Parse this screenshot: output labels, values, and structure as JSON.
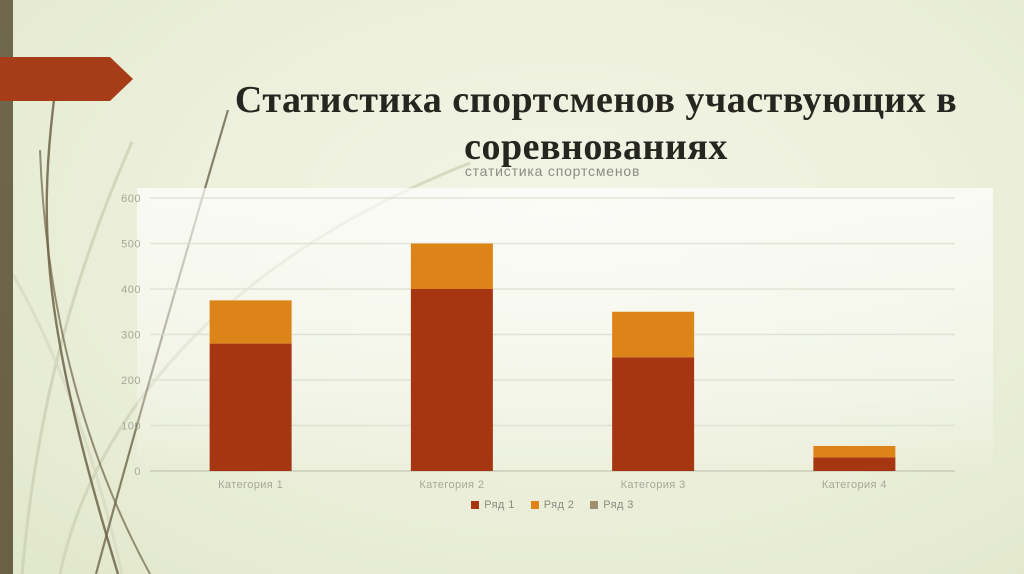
{
  "slide": {
    "title": "Статистика спортсменов участвующих в соревнованиях"
  },
  "chart_data": {
    "type": "bar",
    "stacked": true,
    "title": "статистика спортсменов",
    "categories": [
      "Категория 1",
      "Категория 2",
      "Категория 3",
      "Категория 4"
    ],
    "series": [
      {
        "name": "Ряд 1",
        "color": "#a63512",
        "values": [
          280,
          400,
          250,
          30
        ]
      },
      {
        "name": "Ряд 2",
        "color": "#dd8419",
        "values": [
          95,
          100,
          100,
          25
        ]
      },
      {
        "name": "Ряд 3",
        "color": "#9c9071",
        "values": [
          0,
          0,
          0,
          0
        ]
      }
    ],
    "stack_totals": [
      375,
      500,
      350,
      55
    ],
    "y_ticks": [
      0,
      100,
      200,
      300,
      400,
      500,
      600
    ],
    "ylim": [
      0,
      600
    ],
    "grid": true,
    "legend_position": "bottom"
  },
  "theme": {
    "slide_background": "#ebefda",
    "left_strip": "#6b6347",
    "arrow_accent": "#a73c18",
    "title_text": "#27251f",
    "chart_text": "#8b8c81",
    "axis_tick_text": "#a6a899",
    "gridline": "#d9ddcc",
    "axis_line": "#c2c5b2",
    "curve_dark": "#6d6449",
    "curve_light": "#ccd1b4"
  }
}
